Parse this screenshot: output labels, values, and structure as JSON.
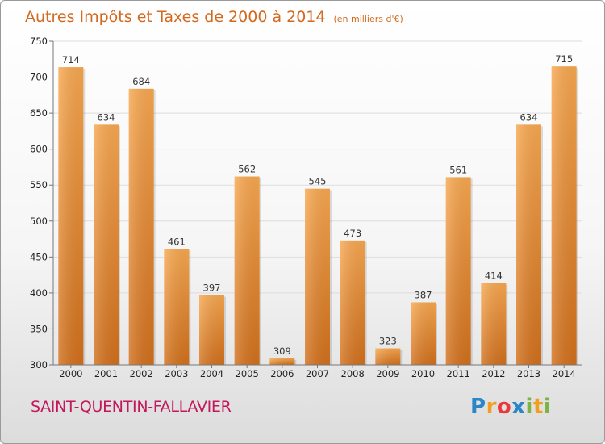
{
  "chart_data": {
    "type": "bar",
    "title": "Autres Impôts et Taxes de 2000 à 2014",
    "subtitle": "(en milliers d'€)",
    "xlabel": "",
    "ylabel": "",
    "categories": [
      "2000",
      "2001",
      "2002",
      "2003",
      "2004",
      "2005",
      "2006",
      "2007",
      "2008",
      "2009",
      "2010",
      "2011",
      "2012",
      "2013",
      "2014"
    ],
    "values": [
      714,
      634,
      684,
      461,
      397,
      562,
      309,
      545,
      473,
      323,
      387,
      561,
      414,
      634,
      715
    ],
    "ylim": [
      300,
      750
    ],
    "yticks": [
      300,
      350,
      400,
      450,
      500,
      550,
      600,
      650,
      700,
      750
    ],
    "grid": true,
    "bar_color": "#f08c30"
  },
  "commune": "SAINT-QUENTIN-FALLAVIER",
  "brand": {
    "letters": [
      "P",
      "r",
      "o",
      "x",
      "i",
      "t",
      "i"
    ],
    "colors": [
      "#2a86c8",
      "#f0a020",
      "#e83a3a",
      "#2a86c8",
      "#7cb342",
      "#f0a020",
      "#7cb342"
    ]
  }
}
